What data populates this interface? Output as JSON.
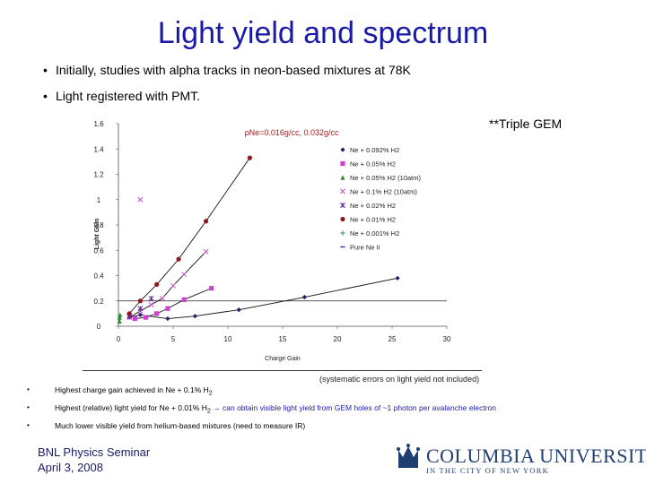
{
  "slide": {
    "title": "Light yield and spectrum",
    "bullets": [
      "Initially, studies with alpha tracks in neon-based mixtures at 78K",
      "Light registered with PMT."
    ],
    "note": "**Triple GEM",
    "systematic_caption": "(systematic errors on light yield not included)",
    "small_bullets": [
      {
        "text": "Highest charge gain achieved in Ne + 0.1% H",
        "sub": "2",
        "tail": ""
      },
      {
        "text": "Highest (relative) light yield for Ne + 0.01% H",
        "sub": "2",
        "tail": " → can obtain visible light yield from GEM holes of ~1 photon per avalanche electron"
      },
      {
        "text": "Much lower visible yield from helium-based mixtures (need to measure IR)",
        "sub": "",
        "tail": ""
      }
    ],
    "footer_line1": "BNL Physics Seminar",
    "footer_line2": "April 3, 2008",
    "logo_text": "COLUMBIA UNIVERSITY",
    "logo_sub": "IN THE CITY OF NEW YORK",
    "bullet_marker": "•",
    "colors": {
      "title": "#1a1aa6",
      "logo": "#1f3f73"
    }
  },
  "chart_data": {
    "type": "scatter",
    "title": "ρNe=0.016g/cc, 0.032g/cc",
    "xlabel": "Charge Gain",
    "ylabel": "Light Gain",
    "outer_ylabel": "γ/ionization e",
    "xlim": [
      0,
      30
    ],
    "ylim": [
      0,
      1.6
    ],
    "xticks": [
      "0",
      "5",
      "10",
      "15",
      "20",
      "25",
      "30"
    ],
    "yticks": [
      "0",
      "0.2",
      "0.4",
      "0.6",
      "0.8",
      "1",
      "1.2",
      "1.4",
      "1.6"
    ],
    "reference_line_y": 0.2,
    "legend_position": "right",
    "series": [
      {
        "name": "Ne + 0.092% H2",
        "marker": "diamond",
        "color": "#1f1f6f",
        "points": [
          [
            1,
            0.07
          ],
          [
            2,
            0.09
          ],
          [
            4.5,
            0.06
          ],
          [
            7,
            0.08
          ],
          [
            11,
            0.13
          ],
          [
            17,
            0.23
          ],
          [
            25.5,
            0.38
          ]
        ]
      },
      {
        "name": "Ne + 0.05% H2",
        "marker": "square",
        "color": "#d040d0",
        "points": [
          [
            1.5,
            0.06
          ],
          [
            2.5,
            0.07
          ],
          [
            3.5,
            0.1
          ],
          [
            4.5,
            0.14
          ],
          [
            6,
            0.21
          ],
          [
            8.5,
            0.3
          ]
        ]
      },
      {
        "name": "Ne + 0.05% H2 (10atm)",
        "marker": "triangle",
        "color": "#2e8b2e",
        "points": [
          [
            0.1,
            0.04
          ],
          [
            0.1,
            0.07
          ],
          [
            0.15,
            0.09
          ]
        ]
      },
      {
        "name": "Ne + 0.1% H2 (10atm)",
        "marker": "x",
        "color": "#c050c0",
        "points": [
          [
            1,
            0.07
          ],
          [
            2,
            0.12
          ],
          [
            3,
            0.17
          ],
          [
            4,
            0.22
          ],
          [
            5,
            0.32
          ],
          [
            6,
            0.41
          ],
          [
            8,
            0.59
          ],
          [
            2,
            1
          ]
        ]
      },
      {
        "name": "Ne + 0.02% H2",
        "marker": "asterisk",
        "color": "#5a2a8a",
        "points": [
          [
            1,
            0.08
          ],
          [
            2,
            0.14
          ],
          [
            3,
            0.22
          ]
        ]
      },
      {
        "name": "Ne + 0.01% H2",
        "marker": "circle",
        "color": "#8b1a1a",
        "points": [
          [
            1,
            0.1
          ],
          [
            2,
            0.2
          ],
          [
            3.5,
            0.33
          ],
          [
            5.5,
            0.53
          ],
          [
            8,
            0.83
          ],
          [
            12,
            1.33
          ]
        ]
      },
      {
        "name": "Ne + 0.001% H2",
        "marker": "plus",
        "color": "#2e8b8b",
        "points": []
      },
      {
        "name": "Pure Ne II",
        "marker": "dash",
        "color": "#333399",
        "points": []
      }
    ]
  }
}
